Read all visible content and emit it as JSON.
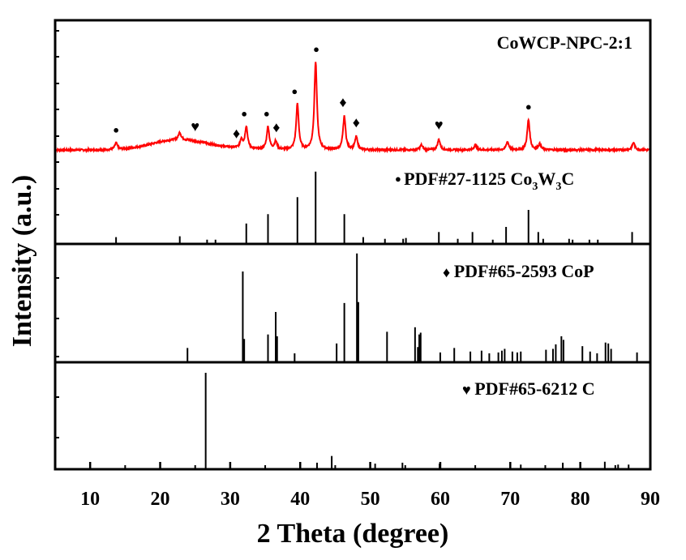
{
  "chart_data": {
    "type": "line",
    "xlabel": "2 Theta (degree)",
    "ylabel": "Intensity (a.u.)",
    "xlim": [
      5,
      90
    ],
    "x_ticks": [
      10,
      20,
      30,
      40,
      50,
      60,
      70,
      80,
      90
    ],
    "x_tick_labels": [
      "10",
      "20",
      "30",
      "40",
      "50",
      "60",
      "70",
      "80",
      "90"
    ],
    "panels": [
      {
        "name": "CoWCP-NPC-2:1",
        "kind": "measured",
        "label": "CoWCP-NPC-2:1",
        "color": "#ff0000",
        "baseline": 10,
        "broad_humps": [
          {
            "center": 22.0,
            "height": 10,
            "width": 5
          },
          {
            "center": 26.0,
            "height": 4,
            "width": 6
          }
        ],
        "peaks": [
          {
            "x": 13.7,
            "y": 8
          },
          {
            "x": 22.8,
            "y": 9
          },
          {
            "x": 31.6,
            "y": 11
          },
          {
            "x": 32.3,
            "y": 27
          },
          {
            "x": 35.4,
            "y": 28
          },
          {
            "x": 36.5,
            "y": 10
          },
          {
            "x": 39.6,
            "y": 56
          },
          {
            "x": 42.2,
            "y": 108
          },
          {
            "x": 46.3,
            "y": 41
          },
          {
            "x": 48.0,
            "y": 16
          },
          {
            "x": 57.3,
            "y": 6
          },
          {
            "x": 59.8,
            "y": 13
          },
          {
            "x": 65.0,
            "y": 6
          },
          {
            "x": 69.6,
            "y": 10
          },
          {
            "x": 72.6,
            "y": 37
          },
          {
            "x": 74.2,
            "y": 7
          },
          {
            "x": 87.6,
            "y": 9
          }
        ],
        "markers": [
          {
            "x": 13.7,
            "symbol": "●"
          },
          {
            "x": 25.0,
            "symbol": "♥"
          },
          {
            "x": 30.9,
            "symbol": "♦"
          },
          {
            "x": 32.0,
            "symbol": "●"
          },
          {
            "x": 35.2,
            "symbol": "●"
          },
          {
            "x": 36.6,
            "symbol": "♦"
          },
          {
            "x": 39.2,
            "symbol": "●"
          },
          {
            "x": 42.3,
            "symbol": "●"
          },
          {
            "x": 46.1,
            "symbol": "♦"
          },
          {
            "x": 48.0,
            "symbol": "♦"
          },
          {
            "x": 59.8,
            "symbol": "♥"
          },
          {
            "x": 72.6,
            "symbol": "●"
          }
        ]
      },
      {
        "name": "PDF#27-1125",
        "kind": "reference",
        "symbol": "●",
        "label": "PDF#27-1125  Co",
        "formula": {
          "co_sub": "3",
          "w": "W",
          "w_sub": "3",
          "tail": "C"
        },
        "color": "#000000",
        "sticks": [
          {
            "x": 13.7,
            "y": 8
          },
          {
            "x": 22.8,
            "y": 9
          },
          {
            "x": 26.7,
            "y": 5
          },
          {
            "x": 27.9,
            "y": 5
          },
          {
            "x": 32.3,
            "y": 24
          },
          {
            "x": 35.4,
            "y": 35
          },
          {
            "x": 39.6,
            "y": 55
          },
          {
            "x": 42.2,
            "y": 85
          },
          {
            "x": 46.3,
            "y": 35
          },
          {
            "x": 49.0,
            "y": 8
          },
          {
            "x": 52.1,
            "y": 6
          },
          {
            "x": 54.7,
            "y": 6
          },
          {
            "x": 55.1,
            "y": 7
          },
          {
            "x": 59.8,
            "y": 14
          },
          {
            "x": 62.5,
            "y": 6
          },
          {
            "x": 64.6,
            "y": 14
          },
          {
            "x": 67.5,
            "y": 5
          },
          {
            "x": 69.4,
            "y": 20
          },
          {
            "x": 72.6,
            "y": 40
          },
          {
            "x": 74.0,
            "y": 14
          },
          {
            "x": 74.7,
            "y": 6
          },
          {
            "x": 78.4,
            "y": 6
          },
          {
            "x": 78.9,
            "y": 5
          },
          {
            "x": 81.3,
            "y": 5
          },
          {
            "x": 82.5,
            "y": 5
          },
          {
            "x": 87.4,
            "y": 14
          }
        ]
      },
      {
        "name": "PDF#65-2593",
        "kind": "reference",
        "symbol": "♦",
        "label": "PDF#65-2593  CoP",
        "color": "#000000",
        "sticks": [
          {
            "x": 23.9,
            "y": 15
          },
          {
            "x": 31.8,
            "y": 100
          },
          {
            "x": 32.0,
            "y": 25
          },
          {
            "x": 35.4,
            "y": 30
          },
          {
            "x": 36.5,
            "y": 55
          },
          {
            "x": 36.7,
            "y": 28
          },
          {
            "x": 39.2,
            "y": 9
          },
          {
            "x": 45.2,
            "y": 20
          },
          {
            "x": 46.3,
            "y": 65
          },
          {
            "x": 48.1,
            "y": 120
          },
          {
            "x": 48.3,
            "y": 66
          },
          {
            "x": 52.4,
            "y": 33
          },
          {
            "x": 56.4,
            "y": 38
          },
          {
            "x": 56.8,
            "y": 16
          },
          {
            "x": 57.0,
            "y": 30
          },
          {
            "x": 57.2,
            "y": 32
          },
          {
            "x": 60.0,
            "y": 10
          },
          {
            "x": 62.0,
            "y": 15
          },
          {
            "x": 64.3,
            "y": 11
          },
          {
            "x": 65.9,
            "y": 12
          },
          {
            "x": 67.0,
            "y": 9
          },
          {
            "x": 68.3,
            "y": 10
          },
          {
            "x": 68.8,
            "y": 12
          },
          {
            "x": 69.2,
            "y": 14
          },
          {
            "x": 70.3,
            "y": 11
          },
          {
            "x": 71.0,
            "y": 10
          },
          {
            "x": 71.5,
            "y": 11
          },
          {
            "x": 75.1,
            "y": 13
          },
          {
            "x": 76.1,
            "y": 14
          },
          {
            "x": 76.5,
            "y": 19
          },
          {
            "x": 77.3,
            "y": 28
          },
          {
            "x": 77.6,
            "y": 24
          },
          {
            "x": 80.3,
            "y": 17
          },
          {
            "x": 81.4,
            "y": 11
          },
          {
            "x": 82.4,
            "y": 9
          },
          {
            "x": 83.6,
            "y": 21
          },
          {
            "x": 84.0,
            "y": 20
          },
          {
            "x": 84.4,
            "y": 14
          },
          {
            "x": 88.1,
            "y": 10
          }
        ]
      },
      {
        "name": "PDF#65-6212",
        "kind": "reference",
        "symbol": "♥",
        "label": "PDF#65-6212  C",
        "color": "#000000",
        "sticks": [
          {
            "x": 26.5,
            "y": 100
          },
          {
            "x": 42.4,
            "y": 6
          },
          {
            "x": 44.5,
            "y": 13
          },
          {
            "x": 50.7,
            "y": 5
          },
          {
            "x": 54.6,
            "y": 6
          },
          {
            "x": 59.9,
            "y": 5
          },
          {
            "x": 71.5,
            "y": 4
          },
          {
            "x": 77.5,
            "y": 6
          },
          {
            "x": 83.5,
            "y": 7
          },
          {
            "x": 85.4,
            "y": 4
          },
          {
            "x": 86.9,
            "y": 4
          }
        ]
      }
    ]
  }
}
